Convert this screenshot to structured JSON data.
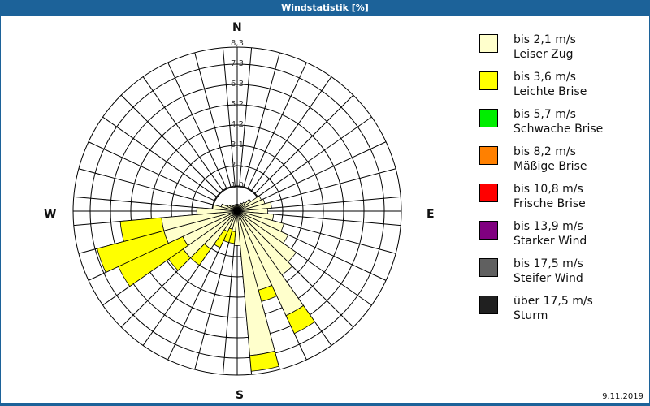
{
  "title": "Windstatistik [%]",
  "compass": {
    "n": "N",
    "e": "E",
    "s": "S",
    "w": "W"
  },
  "date": "9.11.2019",
  "legend": [
    {
      "range": "bis 2,1 m/s",
      "name": "Leiser Zug",
      "color": "#ffffcc"
    },
    {
      "range": "bis 3,6 m/s",
      "name": "Leichte Brise",
      "color": "#ffff00"
    },
    {
      "range": "bis 5,7 m/s",
      "name": "Schwache Brise",
      "color": "#00ee00"
    },
    {
      "range": "bis 8,2 m/s",
      "name": "Mäßige Brise",
      "color": "#ff8000"
    },
    {
      "range": "bis 10,8 m/s",
      "name": "Frische Brise",
      "color": "#ff0000"
    },
    {
      "range": "bis 13,9 m/s",
      "name": "Starker Wind",
      "color": "#800080"
    },
    {
      "range": "bis 17,5 m/s",
      "name": "Steifer Wind",
      "color": "#606060"
    },
    {
      "range": "über 17,5 m/s",
      "name": "Sturm",
      "color": "#202020"
    }
  ],
  "chart_data": {
    "type": "polar-bar (wind rose, stacked)",
    "title": "Windstatistik [%]",
    "ring_labels": [
      "1,0",
      "2,1",
      "3,1",
      "4,2",
      "5,2",
      "6,3",
      "7,3",
      "8,3"
    ],
    "rmax": 8.3,
    "sector_width_deg": 10,
    "series_names": [
      "Leiser Zug (bis 2,1 m/s)",
      "Leichte Brise (bis 3,6 m/s)"
    ],
    "sectors": [
      {
        "dir": 0,
        "values": [
          0.1,
          0
        ]
      },
      {
        "dir": 10,
        "values": [
          0.1,
          0
        ]
      },
      {
        "dir": 20,
        "values": [
          0.1,
          0
        ]
      },
      {
        "dir": 30,
        "values": [
          0.2,
          0
        ]
      },
      {
        "dir": 40,
        "values": [
          0.3,
          0
        ]
      },
      {
        "dir": 50,
        "values": [
          0.6,
          0
        ]
      },
      {
        "dir": 60,
        "values": [
          1.1,
          0
        ]
      },
      {
        "dir": 70,
        "values": [
          1.2,
          0
        ]
      },
      {
        "dir": 80,
        "values": [
          1.5,
          0
        ]
      },
      {
        "dir": 90,
        "values": [
          1.3,
          0
        ]
      },
      {
        "dir": 100,
        "values": [
          1.6,
          0
        ]
      },
      {
        "dir": 110,
        "values": [
          2.2,
          0
        ]
      },
      {
        "dir": 120,
        "values": [
          2.6,
          0
        ]
      },
      {
        "dir": 130,
        "values": [
          3.4,
          0
        ]
      },
      {
        "dir": 140,
        "values": [
          3.7,
          0
        ]
      },
      {
        "dir": 150,
        "values": [
          5.6,
          1.0
        ]
      },
      {
        "dir": 160,
        "values": [
          3.9,
          0.6
        ]
      },
      {
        "dir": 170,
        "values": [
          7.1,
          0.8
        ]
      },
      {
        "dir": 180,
        "values": [
          1.5,
          0
        ]
      },
      {
        "dir": 190,
        "values": [
          0.8,
          0.6
        ]
      },
      {
        "dir": 200,
        "values": [
          0.7,
          0.7
        ]
      },
      {
        "dir": 210,
        "values": [
          0.9,
          0.9
        ]
      },
      {
        "dir": 220,
        "values": [
          2.1,
          1.0
        ]
      },
      {
        "dir": 230,
        "values": [
          3.1,
          0.9
        ]
      },
      {
        "dir": 240,
        "values": [
          2.8,
          3.6
        ]
      },
      {
        "dir": 250,
        "values": [
          3.6,
          3.5
        ]
      },
      {
        "dir": 260,
        "values": [
          3.6,
          2.1
        ]
      },
      {
        "dir": 270,
        "values": [
          1.8,
          0
        ]
      },
      {
        "dir": 280,
        "values": [
          1.0,
          0
        ]
      },
      {
        "dir": 290,
        "values": [
          0.6,
          0
        ]
      },
      {
        "dir": 300,
        "values": [
          0.3,
          0
        ]
      },
      {
        "dir": 310,
        "values": [
          0.2,
          0
        ]
      },
      {
        "dir": 320,
        "values": [
          0.1,
          0
        ]
      },
      {
        "dir": 330,
        "values": [
          0.1,
          0
        ]
      },
      {
        "dir": 340,
        "values": [
          0.1,
          0
        ]
      },
      {
        "dir": 350,
        "values": [
          0.1,
          0
        ]
      }
    ]
  }
}
